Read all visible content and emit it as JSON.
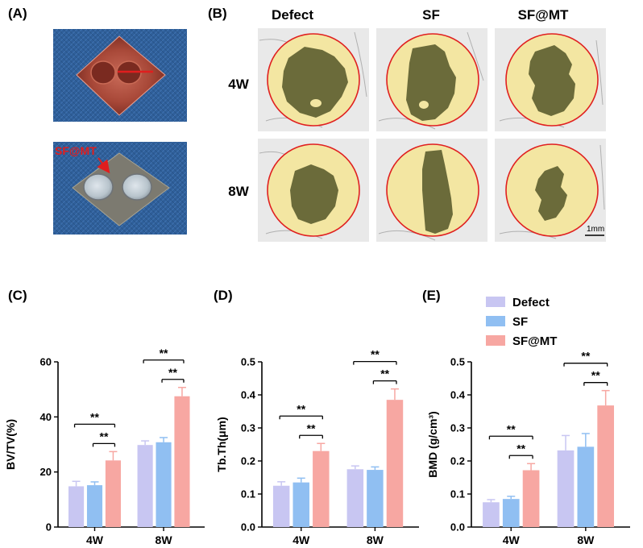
{
  "panels": {
    "a": "(A)",
    "b": "(B)",
    "c": "(C)",
    "d": "(D)",
    "e": "(E)"
  },
  "photo": {
    "label": "SF@MT"
  },
  "microct": {
    "columns": [
      "Defect",
      "SF",
      "SF@MT"
    ],
    "rows": [
      "4W",
      "8W"
    ],
    "scale_bar": "1mm"
  },
  "colors": {
    "defect": "#c8c6f2",
    "sf": "#90bff2",
    "sfmt": "#f7a7a2",
    "bone": "#f3e6a2",
    "defect_area": "#6b6b3a",
    "circle": "#e02020"
  },
  "legend": [
    "Defect",
    "SF",
    "SF@MT"
  ],
  "chart_data": [
    {
      "type": "bar",
      "panel": "(C)",
      "ylabel": "BV/TV(%)",
      "categories": [
        "4W",
        "8W"
      ],
      "ylim": [
        0,
        60
      ],
      "yticks": [
        "0",
        "20",
        "40",
        "60"
      ],
      "series": [
        {
          "name": "Defect",
          "values": [
            14.8,
            29.8
          ],
          "errors": [
            1.8,
            1.5
          ]
        },
        {
          "name": "SF",
          "values": [
            15.2,
            30.8
          ],
          "errors": [
            1.2,
            1.7
          ]
        },
        {
          "name": "SF@MT",
          "values": [
            24.2,
            47.5
          ],
          "errors": [
            3.2,
            3.2
          ]
        }
      ],
      "significance": [
        {
          "group": 0,
          "from": 0,
          "to": 2,
          "level": 1,
          "label": "**"
        },
        {
          "group": 0,
          "from": 1,
          "to": 2,
          "level": 0,
          "label": "**"
        },
        {
          "group": 1,
          "from": 0,
          "to": 2,
          "level": 1,
          "label": "**"
        },
        {
          "group": 1,
          "from": 1,
          "to": 2,
          "level": 0,
          "label": "**"
        }
      ]
    },
    {
      "type": "bar",
      "panel": "(D)",
      "ylabel": "Tb.Th(μm)",
      "categories": [
        "4W",
        "8W"
      ],
      "ylim": [
        0,
        0.5
      ],
      "yticks": [
        "0.0",
        "0.1",
        "0.2",
        "0.3",
        "0.4",
        "0.5"
      ],
      "series": [
        {
          "name": "Defect",
          "values": [
            0.125,
            0.175
          ],
          "errors": [
            0.012,
            0.01
          ]
        },
        {
          "name": "SF",
          "values": [
            0.135,
            0.173
          ],
          "errors": [
            0.013,
            0.009
          ]
        },
        {
          "name": "SF@MT",
          "values": [
            0.23,
            0.385
          ],
          "errors": [
            0.023,
            0.033
          ]
        }
      ],
      "significance": [
        {
          "group": 0,
          "from": 0,
          "to": 2,
          "level": 1,
          "label": "**"
        },
        {
          "group": 0,
          "from": 1,
          "to": 2,
          "level": 0,
          "label": "**"
        },
        {
          "group": 1,
          "from": 0,
          "to": 2,
          "level": 1,
          "label": "**"
        },
        {
          "group": 1,
          "from": 1,
          "to": 2,
          "level": 0,
          "label": "**"
        }
      ]
    },
    {
      "type": "bar",
      "panel": "(E)",
      "ylabel": "BMD (g/cm³)",
      "categories": [
        "4W",
        "8W"
      ],
      "ylim": [
        0,
        0.5
      ],
      "yticks": [
        "0.0",
        "0.1",
        "0.2",
        "0.3",
        "0.4",
        "0.5"
      ],
      "series": [
        {
          "name": "Defect",
          "values": [
            0.075,
            0.232
          ],
          "errors": [
            0.008,
            0.045
          ]
        },
        {
          "name": "SF",
          "values": [
            0.085,
            0.243
          ],
          "errors": [
            0.008,
            0.04
          ]
        },
        {
          "name": "SF@MT",
          "values": [
            0.172,
            0.368
          ],
          "errors": [
            0.02,
            0.045
          ]
        }
      ],
      "significance": [
        {
          "group": 0,
          "from": 0,
          "to": 2,
          "level": 1,
          "label": "**"
        },
        {
          "group": 0,
          "from": 1,
          "to": 2,
          "level": 0,
          "label": "**"
        },
        {
          "group": 1,
          "from": 0,
          "to": 2,
          "level": 1,
          "label": "**"
        },
        {
          "group": 1,
          "from": 1,
          "to": 2,
          "level": 0,
          "label": "**"
        }
      ]
    }
  ]
}
